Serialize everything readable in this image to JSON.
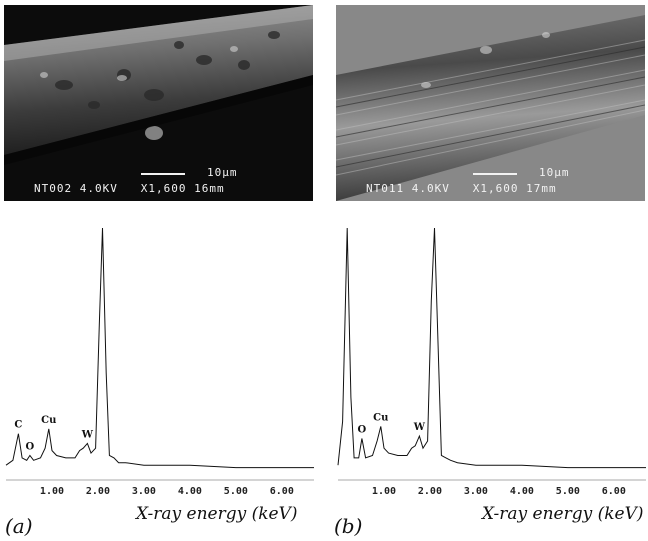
{
  "figure": {
    "panel_a": {
      "label": "(a)",
      "sem": {
        "scale": "10µm",
        "caption": "NT002 4.0KV   X1,600 16mm"
      },
      "xlabel": "X-ray energy (keV)"
    },
    "panel_b": {
      "label": "(b)",
      "sem": {
        "scale": "10µm",
        "caption": "NT011 4.0KV   X1,600 17mm"
      },
      "xlabel": "X-ray energy (keV)"
    }
  },
  "chart_data": [
    {
      "type": "line",
      "xlabel": "X-ray energy (keV)",
      "ylabel": "",
      "xlim": [
        0,
        6.7
      ],
      "xticks": [
        "1.00",
        "2.00",
        "3.00",
        "4.00",
        "5.00",
        "6.00"
      ],
      "grid": false,
      "peaks": [
        {
          "label": "C",
          "x": 0.27,
          "y": 0.15
        },
        {
          "label": "O",
          "x": 0.52,
          "y": 0.06
        },
        {
          "label": "Cu",
          "x": 0.93,
          "y": 0.17
        },
        {
          "label": "W",
          "x": 1.77,
          "y": 0.11
        }
      ],
      "series": [
        {
          "x": [
            0.0,
            0.15,
            0.27,
            0.35,
            0.45,
            0.52,
            0.6,
            0.75,
            0.85,
            0.93,
            1.0,
            1.1,
            1.3,
            1.5,
            1.6,
            1.68,
            1.77,
            1.85,
            1.95,
            2.03,
            2.1,
            2.18,
            2.25,
            2.35,
            2.45,
            2.6,
            3.0,
            4.0,
            5.0,
            6.0,
            6.7
          ],
          "y": [
            0.02,
            0.04,
            0.15,
            0.05,
            0.04,
            0.06,
            0.04,
            0.05,
            0.09,
            0.17,
            0.08,
            0.06,
            0.05,
            0.05,
            0.08,
            0.09,
            0.11,
            0.07,
            0.09,
            0.6,
            1.0,
            0.4,
            0.06,
            0.05,
            0.03,
            0.03,
            0.02,
            0.02,
            0.01,
            0.01,
            0.01
          ]
        }
      ]
    },
    {
      "type": "line",
      "xlabel": "X-ray energy (keV)",
      "ylabel": "",
      "xlim": [
        0,
        6.7
      ],
      "xticks": [
        "1.00",
        "2.00",
        "3.00",
        "4.00",
        "5.00",
        "6.00"
      ],
      "grid": false,
      "peaks": [
        {
          "label": "O",
          "x": 0.52,
          "y": 0.13
        },
        {
          "label": "Cu",
          "x": 0.93,
          "y": 0.18
        },
        {
          "label": "W",
          "x": 1.77,
          "y": 0.14
        }
      ],
      "series": [
        {
          "x": [
            0.0,
            0.1,
            0.2,
            0.28,
            0.35,
            0.45,
            0.52,
            0.6,
            0.75,
            0.85,
            0.93,
            1.0,
            1.1,
            1.3,
            1.5,
            1.6,
            1.68,
            1.77,
            1.85,
            1.95,
            2.03,
            2.1,
            2.18,
            2.25,
            2.35,
            2.45,
            2.6,
            3.0,
            4.0,
            5.0,
            6.0,
            6.7
          ],
          "y": [
            0.02,
            0.2,
            1.0,
            0.3,
            0.05,
            0.05,
            0.13,
            0.05,
            0.06,
            0.12,
            0.18,
            0.09,
            0.07,
            0.06,
            0.06,
            0.09,
            0.1,
            0.14,
            0.09,
            0.12,
            0.7,
            1.0,
            0.5,
            0.06,
            0.05,
            0.04,
            0.03,
            0.02,
            0.02,
            0.01,
            0.01,
            0.01
          ]
        }
      ]
    }
  ]
}
